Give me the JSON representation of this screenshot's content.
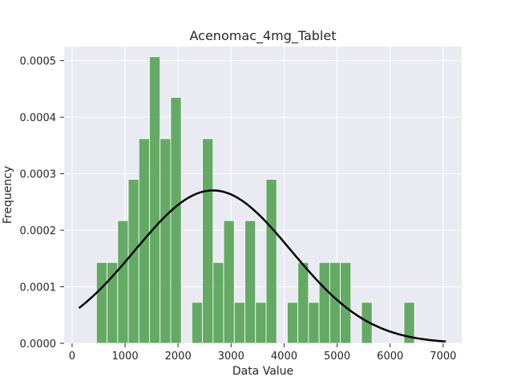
{
  "chart_data": {
    "type": "bar",
    "title": "Acenomac_4mg_Tablet",
    "xlabel": "Data Value",
    "ylabel": "Frequency",
    "xlim": [
      -150,
      7350
    ],
    "ylim": [
      0,
      0.000525
    ],
    "xticks": [
      0,
      1000,
      2000,
      3000,
      4000,
      5000,
      6000,
      7000
    ],
    "xtick_labels": [
      "0",
      "1000",
      "2000",
      "3000",
      "4000",
      "5000",
      "6000",
      "7000"
    ],
    "yticks": [
      0,
      0.0001,
      0.0002,
      0.0003,
      0.0004,
      0.0005
    ],
    "ytick_labels": [
      "0.0000",
      "0.0001",
      "0.0002",
      "0.0003",
      "0.0004",
      "0.0005"
    ],
    "grid": true,
    "background": "#eaeaf2",
    "series": [
      {
        "type": "histogram",
        "color": "#4c9f4c",
        "bin_width": 200,
        "bins": [
          {
            "x0": 460,
            "x1": 660,
            "value": 0.000143
          },
          {
            "x0": 660,
            "x1": 860,
            "value": 0.000143
          },
          {
            "x0": 860,
            "x1": 1060,
            "value": 0.000217
          },
          {
            "x0": 1060,
            "x1": 1260,
            "value": 0.00029
          },
          {
            "x0": 1260,
            "x1": 1460,
            "value": 0.000362
          },
          {
            "x0": 1460,
            "x1": 1660,
            "value": 0.000507
          },
          {
            "x0": 1660,
            "x1": 1860,
            "value": 0.000362
          },
          {
            "x0": 1860,
            "x1": 2060,
            "value": 0.000435
          },
          {
            "x0": 2060,
            "x1": 2260,
            "value": 0
          },
          {
            "x0": 2260,
            "x1": 2460,
            "value": 7.25e-05
          },
          {
            "x0": 2460,
            "x1": 2660,
            "value": 0.000362
          },
          {
            "x0": 2660,
            "x1": 2860,
            "value": 0.000143
          },
          {
            "x0": 2860,
            "x1": 3060,
            "value": 0.000217
          },
          {
            "x0": 3060,
            "x1": 3260,
            "value": 7.25e-05
          },
          {
            "x0": 3260,
            "x1": 3460,
            "value": 0.000217
          },
          {
            "x0": 3460,
            "x1": 3660,
            "value": 7.25e-05
          },
          {
            "x0": 3660,
            "x1": 3860,
            "value": 0.00029
          },
          {
            "x0": 3860,
            "x1": 4060,
            "value": 0
          },
          {
            "x0": 4060,
            "x1": 4260,
            "value": 7.25e-05
          },
          {
            "x0": 4260,
            "x1": 4460,
            "value": 0.000143
          },
          {
            "x0": 4460,
            "x1": 4660,
            "value": 7.25e-05
          },
          {
            "x0": 4660,
            "x1": 4860,
            "value": 0.000143
          },
          {
            "x0": 4860,
            "x1": 5060,
            "value": 0.000143
          },
          {
            "x0": 5060,
            "x1": 5260,
            "value": 0.000143
          },
          {
            "x0": 5260,
            "x1": 5460,
            "value": 0
          },
          {
            "x0": 5460,
            "x1": 5660,
            "value": 7.25e-05
          },
          {
            "x0": 5660,
            "x1": 5860,
            "value": 0
          },
          {
            "x0": 5860,
            "x1": 6060,
            "value": 0
          },
          {
            "x0": 6060,
            "x1": 6260,
            "value": 0
          },
          {
            "x0": 6260,
            "x1": 6460,
            "value": 7.25e-05
          }
        ]
      },
      {
        "type": "normal-curve",
        "color": "#000000",
        "mean": 2657,
        "std": 1475,
        "x_range": [
          130,
          7050
        ]
      }
    ]
  }
}
